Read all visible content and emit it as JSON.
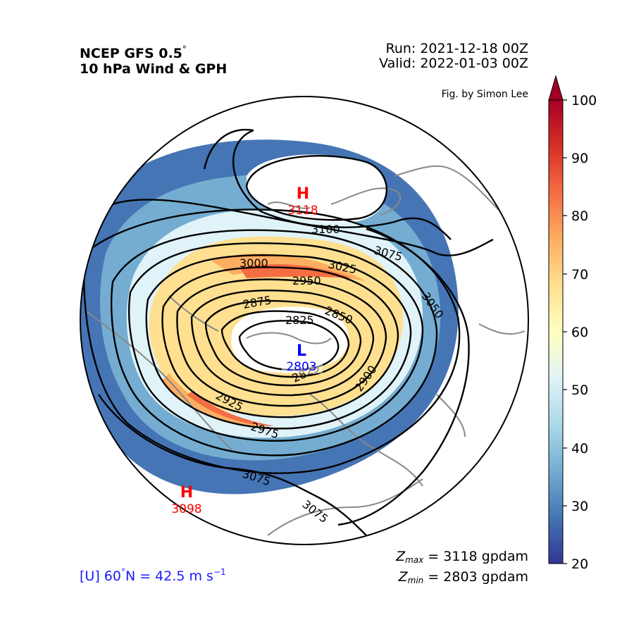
{
  "header": {
    "title_line1": "NCEP GFS 0.5",
    "degree_mark": "°",
    "title_line2": "10 hPa Wind & GPH",
    "run": "Run: 2021-12-18 00Z",
    "valid": "Valid: 2022-01-03 00Z",
    "credit": "Fig. by Simon Lee"
  },
  "markers": [
    {
      "letter": "H",
      "value": "3118",
      "color": "#ff0000"
    },
    {
      "letter": "L",
      "value": "2803",
      "color": "#0000ff"
    },
    {
      "letter": "H",
      "value": "3098",
      "color": "#ff0000"
    }
  ],
  "contour_labels": [
    "3100",
    "3075",
    "3000",
    "3025",
    "2950",
    "3050",
    "2875",
    "2850",
    "2825",
    "2825",
    "2900",
    "2925",
    "2975",
    "3075",
    "3075"
  ],
  "colorbar": {
    "ticks": [
      "100",
      "90",
      "80",
      "70",
      "60",
      "50",
      "40",
      "30",
      "20"
    ],
    "min": 20,
    "max": 100,
    "extend": "max",
    "colormap": [
      "#313695",
      "#4575b4",
      "#74add1",
      "#abd9e9",
      "#e0f3f8",
      "#ffffbf",
      "#fee090",
      "#fdae61",
      "#f46d43",
      "#d73027",
      "#a50026"
    ]
  },
  "stats": {
    "zmax_sym": "Z",
    "zmax_sub": "max",
    "zmax_val": " = 3118 gpdam",
    "zmin_sym": "Z",
    "zmin_sub": "min",
    "zmin_val": " = 2803 gpdam"
  },
  "wind_note": {
    "prefix": "[U] 60",
    "degree": "°",
    "mid": "N = 42.5 m s",
    "exp": "−1"
  },
  "colors": {
    "contour": "#000000",
    "coastline": "#888888",
    "high": "#ff0000",
    "low": "#0000ff"
  }
}
